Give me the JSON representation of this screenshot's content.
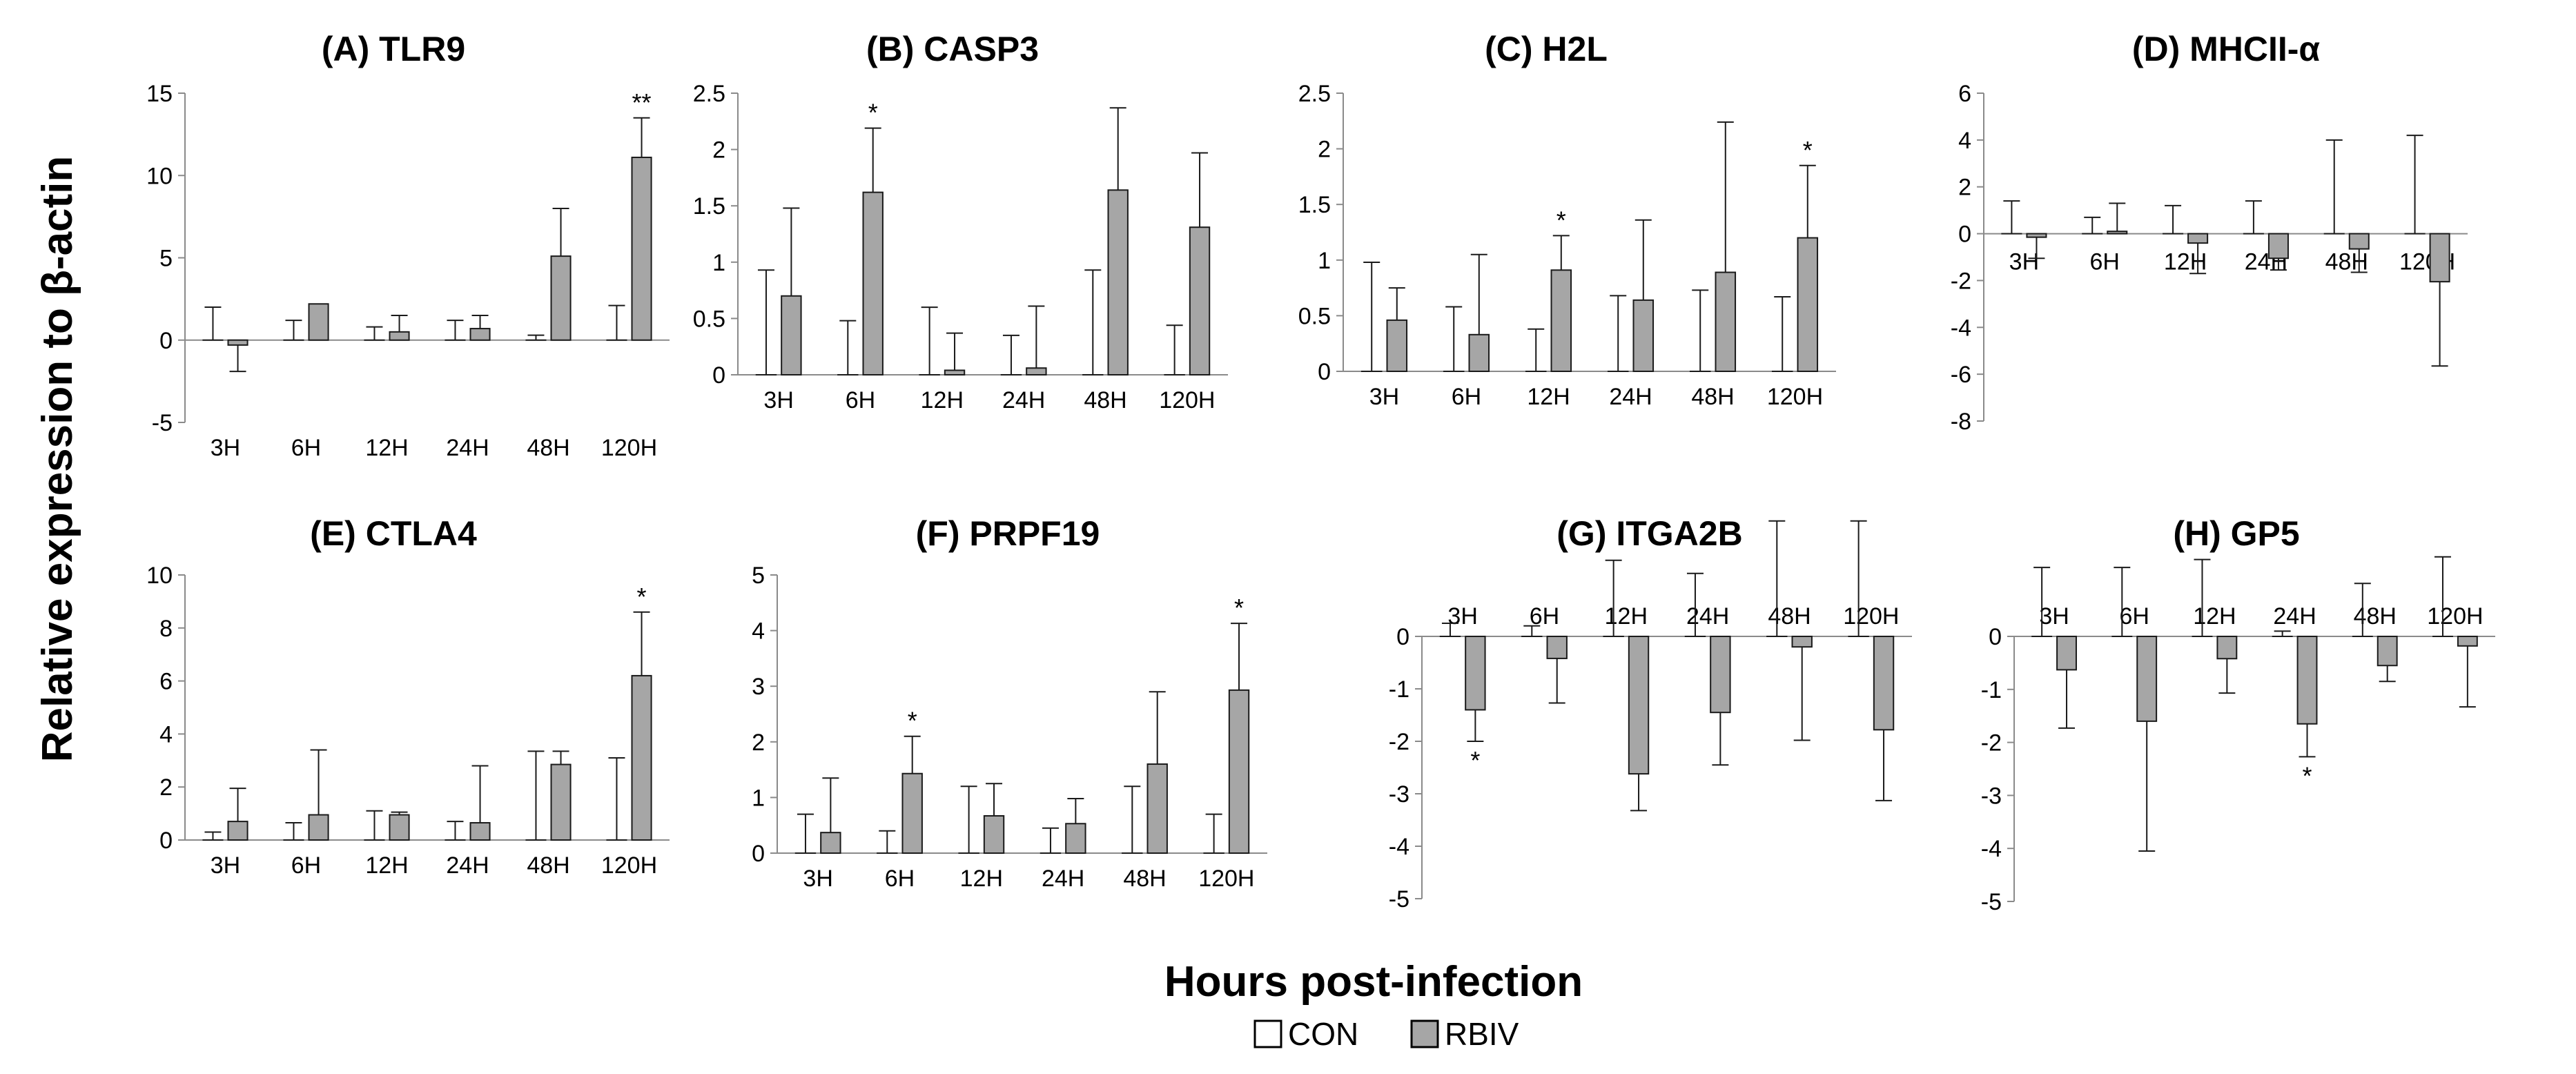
{
  "figure": {
    "ylabel": "Relative expression to β-actin",
    "xlabel": "Hours post-infection",
    "legend": [
      {
        "label": "CON",
        "color": "#ffffff"
      },
      {
        "label": "RBIV",
        "color": "#a6a6a6"
      }
    ]
  },
  "chart_data": [
    {
      "type": "bar",
      "title": "(A) TLR9",
      "categories": [
        "3H",
        "6H",
        "12H",
        "24H",
        "48H",
        "120H"
      ],
      "ylim": [
        -5,
        15
      ],
      "yticks": [
        -5,
        0,
        5,
        10,
        15
      ],
      "ytick_labels": [
        "-5",
        "0",
        "5",
        "10",
        "15"
      ],
      "series": [
        {
          "name": "CON",
          "values": [
            0,
            0,
            0,
            0,
            0,
            0
          ],
          "error": [
            2.0,
            1.2,
            0.8,
            1.2,
            0.3,
            2.1
          ]
        },
        {
          "name": "RBIV",
          "values": [
            -0.3,
            2.2,
            0.5,
            0.7,
            5.1,
            11.1
          ],
          "error": [
            1.6,
            0,
            1.0,
            0.8,
            2.9,
            2.4
          ]
        }
      ],
      "significance": [
        "",
        "",
        "",
        "",
        "",
        "**"
      ]
    },
    {
      "type": "bar",
      "title": "(B) CASP3",
      "categories": [
        "3H",
        "6H",
        "12H",
        "24H",
        "48H",
        "120H"
      ],
      "ylim": [
        0,
        2.5
      ],
      "yticks": [
        0,
        0.5,
        1,
        1.5,
        2,
        2.5
      ],
      "ytick_labels": [
        "0",
        "0.5",
        "1",
        "1.5",
        "2",
        "2.5"
      ],
      "series": [
        {
          "name": "CON",
          "values": [
            0,
            0,
            0,
            0,
            0,
            0
          ],
          "error": [
            0.93,
            0.48,
            0.6,
            0.35,
            0.93,
            0.44
          ]
        },
        {
          "name": "RBIV",
          "values": [
            0.7,
            1.62,
            0.04,
            0.06,
            1.64,
            1.31
          ],
          "error": [
            0.78,
            0.57,
            0.33,
            0.55,
            0.73,
            0.66
          ]
        }
      ],
      "significance": [
        "",
        "*",
        "",
        "",
        "",
        ""
      ]
    },
    {
      "type": "bar",
      "title": "(C) H2L",
      "categories": [
        "3H",
        "6H",
        "12H",
        "24H",
        "48H",
        "120H"
      ],
      "ylim": [
        0,
        2.5
      ],
      "yticks": [
        0,
        0.5,
        1,
        1.5,
        2,
        2.5
      ],
      "ytick_labels": [
        "0",
        "0.5",
        "1",
        "1.5",
        "2",
        "2.5"
      ],
      "series": [
        {
          "name": "CON",
          "values": [
            0,
            0,
            0,
            0,
            0,
            0
          ],
          "error": [
            0.98,
            0.58,
            0.38,
            0.68,
            0.73,
            0.67
          ]
        },
        {
          "name": "RBIV",
          "values": [
            0.46,
            0.33,
            0.91,
            0.64,
            0.89,
            1.2
          ],
          "error": [
            0.29,
            0.72,
            0.31,
            0.72,
            1.35,
            0.65
          ]
        }
      ],
      "significance": [
        "",
        "",
        "*",
        "",
        "",
        "*"
      ]
    },
    {
      "type": "bar",
      "title": "(D) MHCII-α",
      "categories": [
        "3H",
        "6H",
        "12H",
        "24H",
        "48H",
        "120H"
      ],
      "ylim": [
        -8,
        6
      ],
      "yticks": [
        -8,
        -6,
        -4,
        -2,
        0,
        2,
        4,
        6
      ],
      "ytick_labels": [
        "-8",
        "-6",
        "-4",
        "-2",
        "0",
        "2",
        "4",
        "6"
      ],
      "series": [
        {
          "name": "CON",
          "values": [
            0,
            0,
            0,
            0,
            0,
            0
          ],
          "error": [
            1.4,
            0.7,
            1.2,
            1.4,
            4.0,
            4.2
          ]
        },
        {
          "name": "RBIV",
          "values": [
            -0.15,
            0.1,
            -0.4,
            -1.05,
            -0.65,
            -2.05
          ],
          "error": [
            0.9,
            1.2,
            1.3,
            0.5,
            1.0,
            3.6
          ]
        }
      ],
      "significance": [
        "",
        "",
        "",
        "",
        "",
        ""
      ]
    },
    {
      "type": "bar",
      "title": "(E) CTLA4",
      "categories": [
        "3H",
        "6H",
        "12H",
        "24H",
        "48H",
        "120H"
      ],
      "ylim": [
        0,
        10
      ],
      "yticks": [
        0,
        2,
        4,
        6,
        8,
        10
      ],
      "ytick_labels": [
        "0",
        "2",
        "4",
        "6",
        "8",
        "10"
      ],
      "series": [
        {
          "name": "CON",
          "values": [
            0,
            0,
            0,
            0,
            0,
            0
          ],
          "error": [
            0.3,
            0.65,
            1.1,
            0.7,
            3.35,
            3.1
          ]
        },
        {
          "name": "RBIV",
          "values": [
            0.7,
            0.95,
            0.95,
            0.65,
            2.85,
            6.2
          ],
          "error": [
            1.25,
            2.45,
            0.1,
            2.15,
            0.5,
            2.4
          ]
        }
      ],
      "significance": [
        "",
        "",
        "",
        "",
        "",
        "*"
      ]
    },
    {
      "type": "bar",
      "title": "(F) PRPF19",
      "categories": [
        "3H",
        "6H",
        "12H",
        "24H",
        "48H",
        "120H"
      ],
      "ylim": [
        0,
        5
      ],
      "yticks": [
        0,
        1,
        2,
        3,
        4,
        5
      ],
      "ytick_labels": [
        "0",
        "1",
        "2",
        "3",
        "4",
        "5"
      ],
      "series": [
        {
          "name": "CON",
          "values": [
            0,
            0,
            0,
            0,
            0,
            0
          ],
          "error": [
            0.7,
            0.4,
            1.2,
            0.45,
            1.2,
            0.7
          ]
        },
        {
          "name": "RBIV",
          "values": [
            0.37,
            1.43,
            0.67,
            0.53,
            1.6,
            2.93
          ],
          "error": [
            0.98,
            0.67,
            0.58,
            0.45,
            1.3,
            1.2
          ]
        }
      ],
      "significance": [
        "",
        "*",
        "",
        "",
        "",
        "*"
      ]
    },
    {
      "type": "bar",
      "title": "(G) ITGA2B",
      "categories": [
        "3H",
        "6H",
        "12H",
        "24H",
        "48H",
        "120H"
      ],
      "ylim": [
        -5,
        0
      ],
      "yticks": [
        -5,
        -4,
        -3,
        -2,
        -1,
        0
      ],
      "ytick_labels": [
        "-5",
        "-4",
        "-3",
        "-2",
        "-1",
        "0"
      ],
      "series": [
        {
          "name": "CON",
          "values": [
            0,
            0,
            0,
            0,
            0,
            0
          ],
          "error": [
            0.25,
            0.2,
            1.45,
            1.2,
            2.2,
            2.2
          ]
        },
        {
          "name": "RBIV",
          "values": [
            -1.4,
            -0.42,
            -2.62,
            -1.45,
            -0.2,
            -1.78
          ],
          "error": [
            0.6,
            0.85,
            0.7,
            1.0,
            1.78,
            1.35
          ]
        }
      ],
      "significance": [
        "*",
        "",
        "",
        "",
        "",
        ""
      ]
    },
    {
      "type": "bar",
      "title": "(H) GP5",
      "categories": [
        "3H",
        "6H",
        "12H",
        "24H",
        "48H",
        "120H"
      ],
      "ylim": [
        -5,
        0
      ],
      "yticks": [
        -5,
        -4,
        -3,
        -2,
        -1,
        0
      ],
      "ytick_labels": [
        "-5",
        "-4",
        "-3",
        "-2",
        "-1",
        "0"
      ],
      "series": [
        {
          "name": "CON",
          "values": [
            0,
            0,
            0,
            0,
            0,
            0
          ],
          "error": [
            1.3,
            1.3,
            1.45,
            0.1,
            1.0,
            1.5
          ]
        },
        {
          "name": "RBIV",
          "values": [
            -0.63,
            -1.6,
            -0.42,
            -1.65,
            -0.55,
            -0.18
          ],
          "error": [
            1.1,
            2.45,
            0.65,
            0.62,
            0.3,
            1.15
          ]
        }
      ],
      "significance": [
        "",
        "",
        "",
        "*",
        "",
        ""
      ]
    }
  ]
}
